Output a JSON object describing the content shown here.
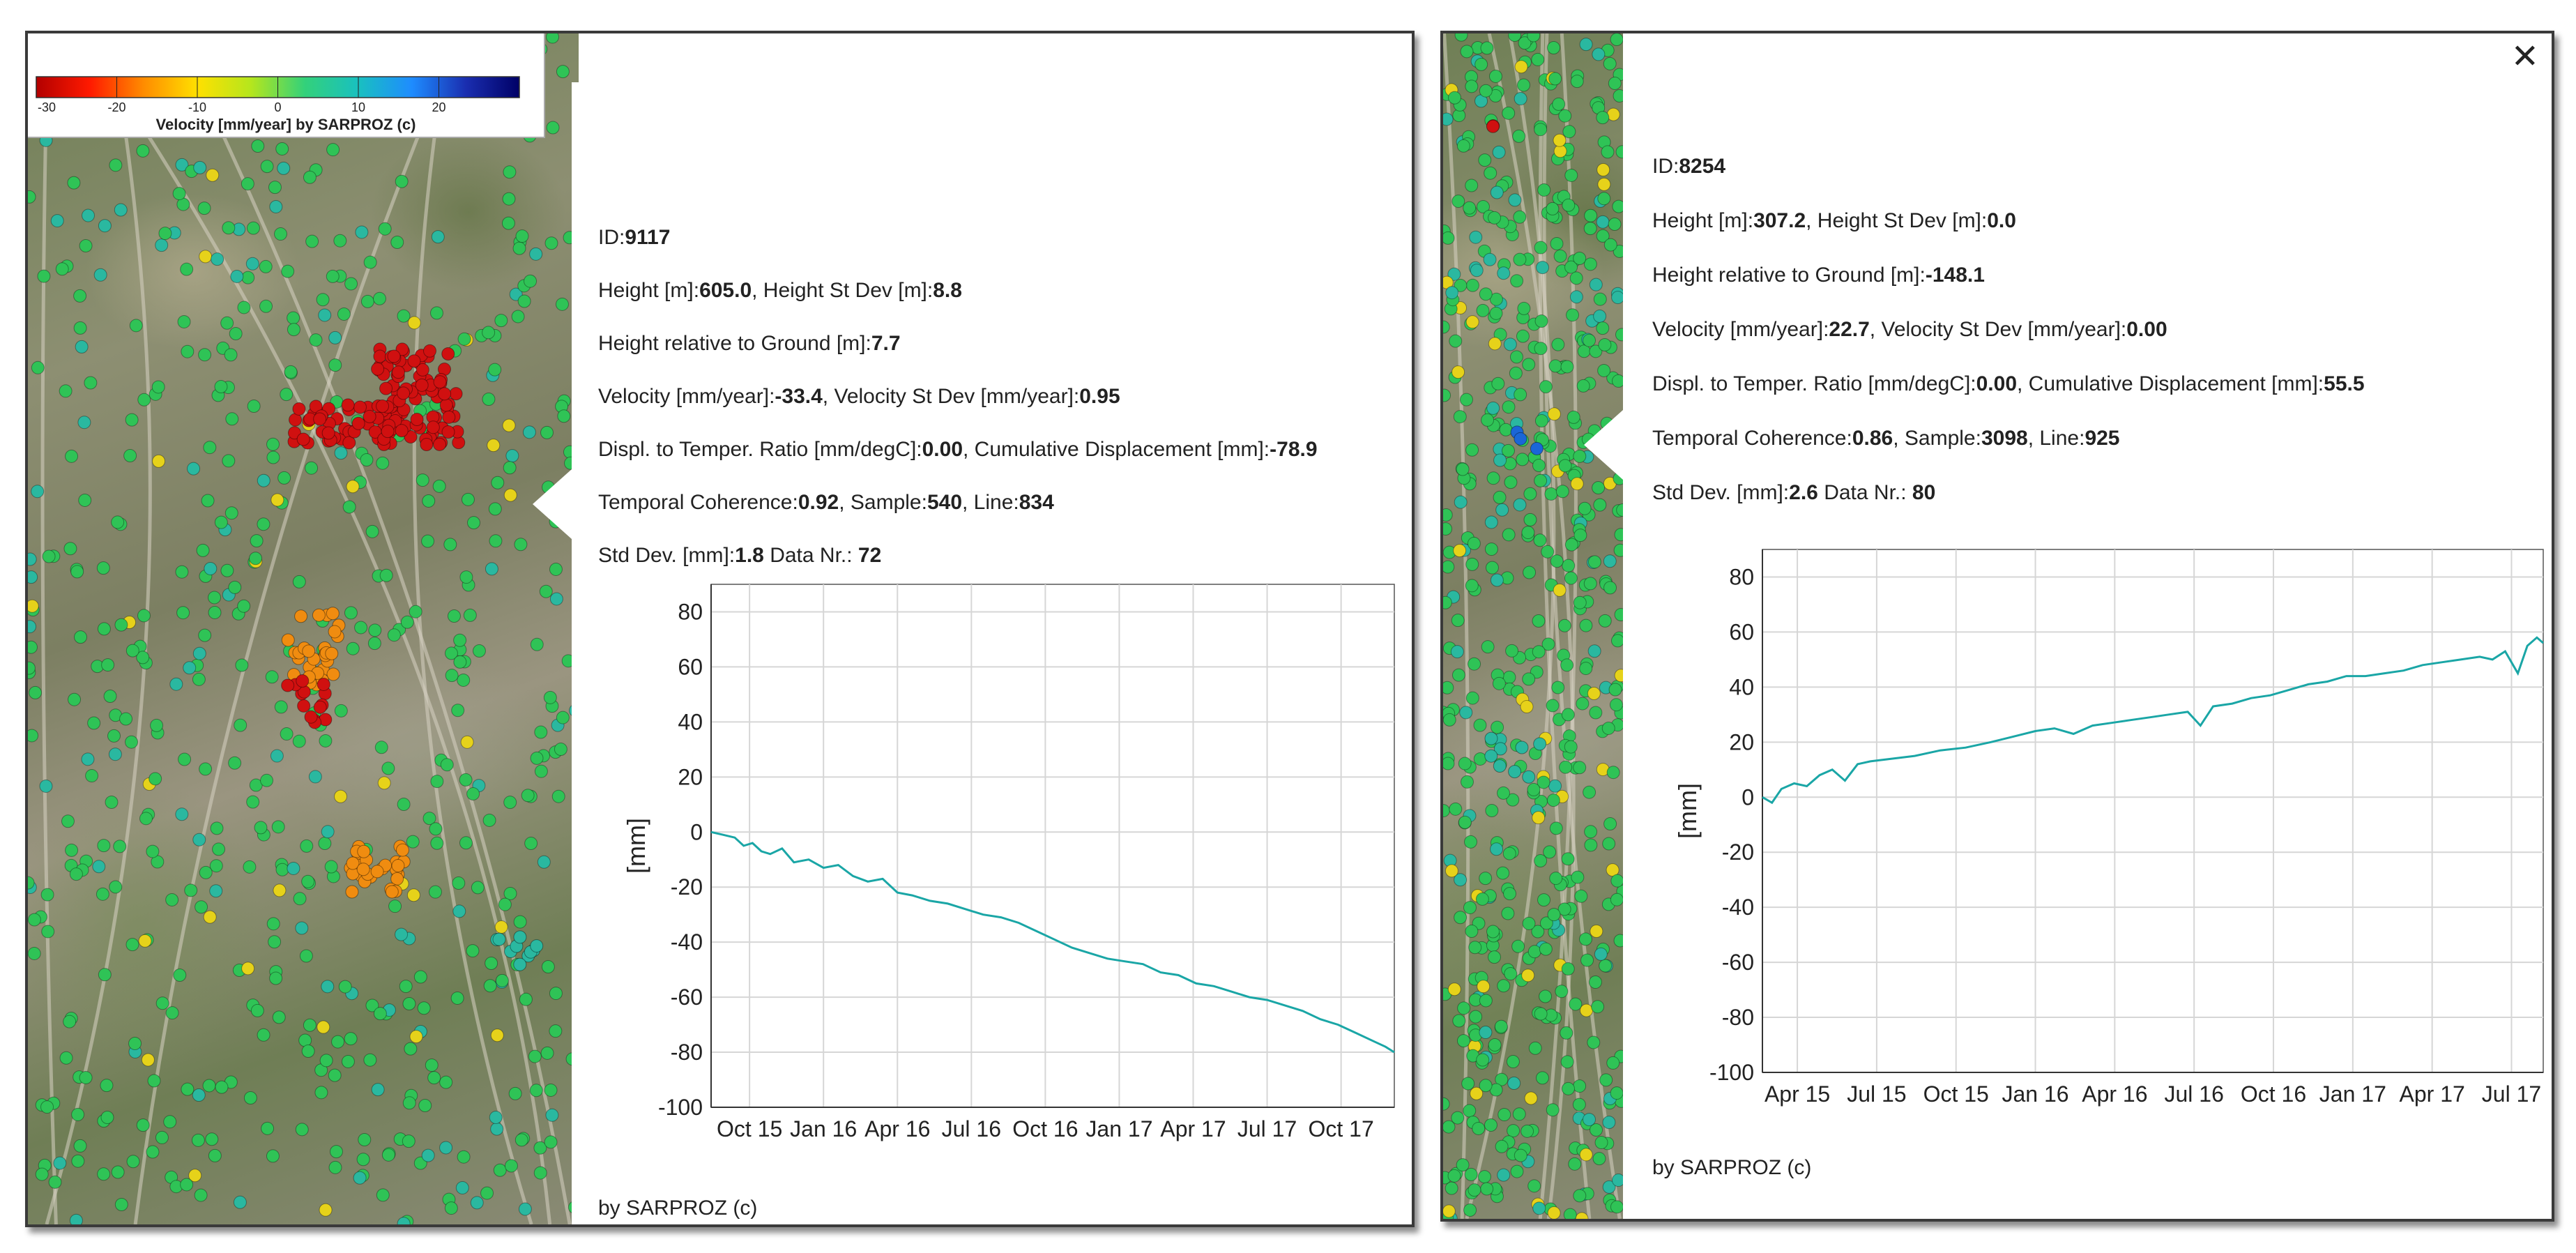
{
  "legend": {
    "title": "Velocity [mm/year]  by  SARPROZ (c)",
    "ticks": [
      "-30",
      "-20",
      "-10",
      "0",
      "10",
      "20"
    ],
    "tick_values": [
      -30,
      -20,
      -10,
      0,
      10,
      20
    ],
    "range": [
      -30,
      30
    ],
    "colors": [
      "#b30000",
      "#ff1a00",
      "#ff8c00",
      "#ffe000",
      "#b5e61d",
      "#33d17a",
      "#19c0c0",
      "#1e8cff",
      "#1a2eb0",
      "#000066"
    ]
  },
  "colors": {
    "series_line": "#1aa6a6",
    "grid": "#d6d6d6",
    "red": "#d01010",
    "orange": "#f08c10",
    "yellow": "#e6d21a",
    "green": "#2fc356",
    "teal": "#2ab8a0",
    "blue": "#1a66d8"
  },
  "left_panel": {
    "id_label": "ID:",
    "id_value": "9117",
    "height_label": "Height [m]:",
    "height_value": "605.0",
    "height_sd_label": ", Height St Dev [m]:",
    "height_sd_value": "8.8",
    "hrel_label": "Height relative to Ground [m]:",
    "hrel_value": "7.7",
    "vel_label": "Velocity [mm/year]:",
    "vel_value": "-33.4",
    "vel_sd_label": ", Velocity St Dev [mm/year]:",
    "vel_sd_value": "0.95",
    "dtr_label": "Displ. to Temper. Ratio [mm/degC]:",
    "dtr_value": "0.00",
    "cum_label": ", Cumulative Displacement [mm]:",
    "cum_value": "-78.9",
    "coh_label": "Temporal Coherence:",
    "coh_value": "0.92",
    "sample_label": ", Sample:",
    "sample_value": "540",
    "line_label": ", Line:",
    "line_value": "834",
    "std_label": "Std Dev. [mm]:",
    "std_value": "1.8",
    "datanr_label": " Data Nr.: ",
    "datanr_value": "72",
    "credit": "by SARPROZ (c)",
    "chart_data": {
      "type": "line",
      "ylabel": "[mm]",
      "ylim": [
        -100,
        90
      ],
      "yticks": [
        80,
        60,
        40,
        20,
        0,
        -20,
        -40,
        -60,
        -80,
        -100
      ],
      "xticklabels": [
        "Oct 15",
        "Jan 16",
        "Apr 16",
        "Jul 16",
        "Oct 16",
        "Jan 17",
        "Apr 17",
        "Jul 17",
        "Oct 17"
      ],
      "xticks": [
        2015.75,
        2016.0,
        2016.25,
        2016.5,
        2016.75,
        2017.0,
        2017.25,
        2017.5,
        2017.75
      ],
      "xlim": [
        2015.62,
        2017.93
      ],
      "grid": true,
      "series": [
        {
          "x": [
            2015.62,
            2015.66,
            2015.7,
            2015.73,
            2015.76,
            2015.79,
            2015.82,
            2015.86,
            2015.9,
            2015.95,
            2016.0,
            2016.05,
            2016.1,
            2016.15,
            2016.2,
            2016.25,
            2016.3,
            2016.36,
            2016.42,
            2016.48,
            2016.54,
            2016.6,
            2016.66,
            2016.72,
            2016.78,
            2016.84,
            2016.9,
            2016.96,
            2017.02,
            2017.08,
            2017.14,
            2017.2,
            2017.26,
            2017.32,
            2017.38,
            2017.44,
            2017.5,
            2017.56,
            2017.62,
            2017.68,
            2017.74,
            2017.8,
            2017.86,
            2017.9,
            2017.93
          ],
          "y": [
            0,
            -1,
            -2,
            -5,
            -4,
            -7,
            -8,
            -6,
            -11,
            -10,
            -13,
            -12,
            -16,
            -18,
            -17,
            -22,
            -23,
            -25,
            -26,
            -28,
            -30,
            -31,
            -33,
            -36,
            -39,
            -42,
            -44,
            -46,
            -47,
            -48,
            -51,
            -52,
            -55,
            -56,
            -58,
            -60,
            -61,
            -63,
            -65,
            -68,
            -70,
            -73,
            -76,
            -78,
            -80
          ]
        }
      ]
    }
  },
  "right_panel": {
    "close_label": "✕",
    "id_label": "ID:",
    "id_value": "8254",
    "height_label": "Height [m]:",
    "height_value": "307.2",
    "height_sd_label": ", Height St Dev [m]:",
    "height_sd_value": "0.0",
    "hrel_label": "Height relative to Ground [m]:",
    "hrel_value": "-148.1",
    "vel_label": "Velocity [mm/year]:",
    "vel_value": "22.7",
    "vel_sd_label": ", Velocity St Dev [mm/year]:",
    "vel_sd_value": "0.00",
    "dtr_label": "Displ. to Temper. Ratio [mm/degC]:",
    "dtr_value": "0.00",
    "cum_label": ", Cumulative Displacement [mm]:",
    "cum_value": "55.5",
    "coh_label": "Temporal Coherence:",
    "coh_value": "0.86",
    "sample_label": ", Sample:",
    "sample_value": "3098",
    "line_label": ", Line:",
    "line_value": "925",
    "std_label": "Std Dev. [mm]:",
    "std_value": "2.6",
    "datanr_label": " Data Nr.: ",
    "datanr_value": "80",
    "credit": "by SARPROZ (c)",
    "chart_data": {
      "type": "line",
      "ylabel": "[mm]",
      "ylim": [
        -100,
        90
      ],
      "yticks": [
        80,
        60,
        40,
        20,
        0,
        -20,
        -40,
        -60,
        -80,
        -100
      ],
      "xticklabels": [
        "Apr 15",
        "Jul 15",
        "Oct 15",
        "Jan 16",
        "Apr 16",
        "Jul 16",
        "Oct 16",
        "Jan 17",
        "Apr 17",
        "Jul 17"
      ],
      "xticks": [
        2015.25,
        2015.5,
        2015.75,
        2016.0,
        2016.25,
        2016.5,
        2016.75,
        2017.0,
        2017.25,
        2017.5
      ],
      "xlim": [
        2015.14,
        2017.6
      ],
      "grid": true,
      "series": [
        {
          "x": [
            2015.14,
            2015.17,
            2015.2,
            2015.24,
            2015.28,
            2015.32,
            2015.36,
            2015.4,
            2015.44,
            2015.48,
            2015.55,
            2015.62,
            2015.7,
            2015.78,
            2015.86,
            2015.93,
            2016.0,
            2016.06,
            2016.12,
            2016.18,
            2016.24,
            2016.3,
            2016.36,
            2016.42,
            2016.48,
            2016.52,
            2016.56,
            2016.62,
            2016.68,
            2016.74,
            2016.8,
            2016.86,
            2016.92,
            2016.98,
            2017.04,
            2017.1,
            2017.16,
            2017.22,
            2017.28,
            2017.34,
            2017.4,
            2017.44,
            2017.48,
            2017.52,
            2017.55,
            2017.58,
            2017.6
          ],
          "y": [
            0,
            -2,
            3,
            5,
            4,
            8,
            10,
            6,
            12,
            13,
            14,
            15,
            17,
            18,
            20,
            22,
            24,
            25,
            23,
            26,
            27,
            28,
            29,
            30,
            31,
            26,
            33,
            34,
            36,
            37,
            39,
            41,
            42,
            44,
            44,
            45,
            46,
            48,
            49,
            50,
            51,
            50,
            53,
            45,
            55,
            58,
            56
          ]
        }
      ]
    }
  }
}
